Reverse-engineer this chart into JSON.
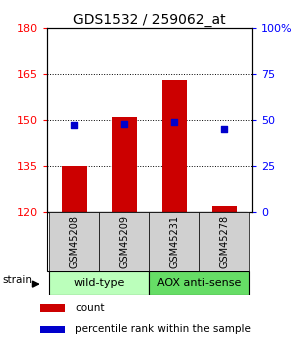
{
  "title": "GDS1532 / 259062_at",
  "samples": [
    "GSM45208",
    "GSM45209",
    "GSM45231",
    "GSM45278"
  ],
  "counts": [
    135,
    151,
    163,
    122
  ],
  "percentiles": [
    47,
    48,
    49,
    45
  ],
  "ymin": 120,
  "ymax": 180,
  "y_ticks": [
    120,
    135,
    150,
    165,
    180
  ],
  "y2_ticks": [
    0,
    25,
    50,
    75,
    100
  ],
  "y2_labels": [
    "0",
    "25",
    "50",
    "75",
    "100%"
  ],
  "bar_color": "#cc0000",
  "dot_color": "#0000cc",
  "groups": [
    {
      "label": "wild-type",
      "indices": [
        0,
        1
      ],
      "color": "#bbffbb"
    },
    {
      "label": "AOX anti-sense",
      "indices": [
        2,
        3
      ],
      "color": "#66dd66"
    }
  ],
  "strain_label": "strain",
  "legend_items": [
    {
      "color": "#cc0000",
      "label": "count"
    },
    {
      "color": "#0000cc",
      "label": "percentile rank within the sample"
    }
  ],
  "bar_width": 0.5,
  "title_fontsize": 10,
  "tick_fontsize": 8,
  "label_fontsize": 7,
  "group_fontsize": 8
}
